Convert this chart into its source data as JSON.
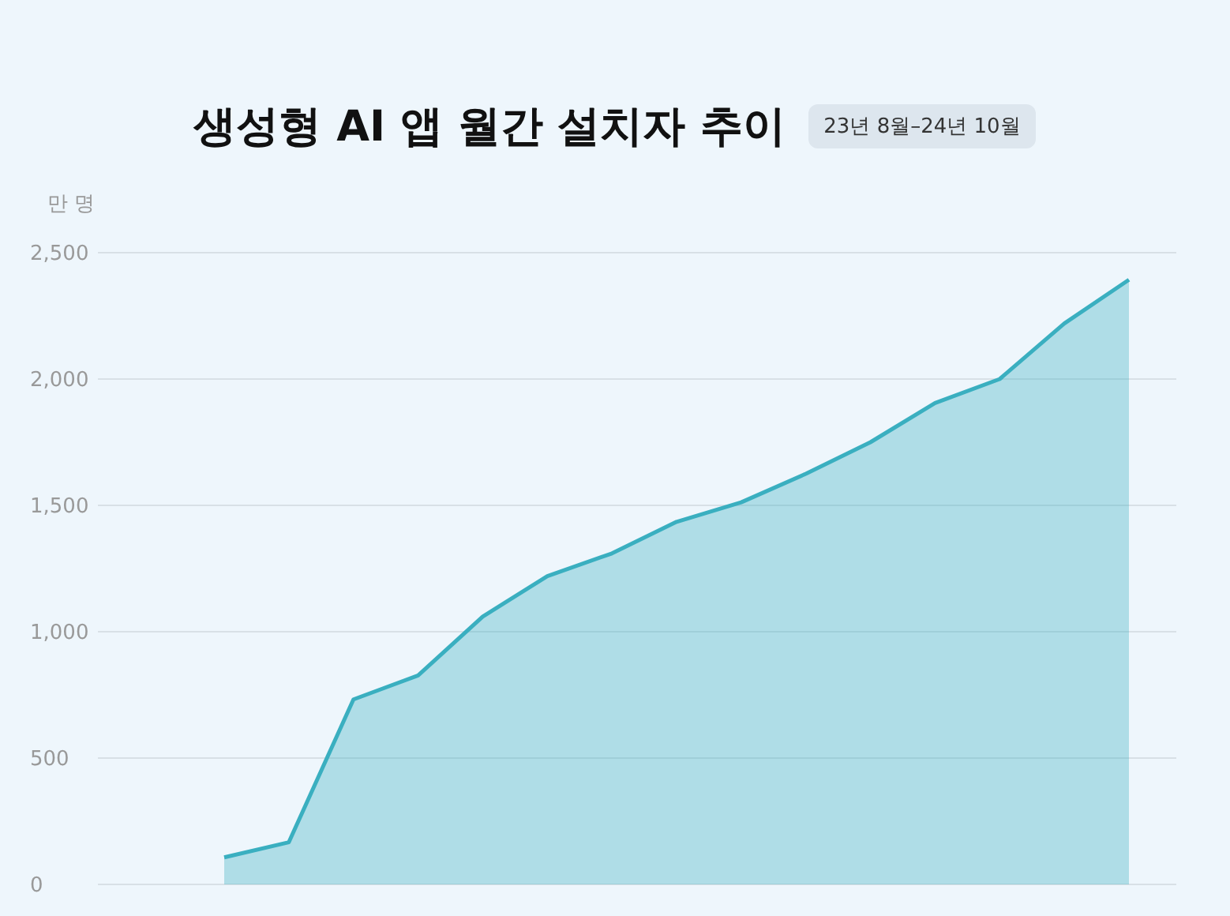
{
  "chart_data": {
    "type": "area",
    "title": "생성형 AI 앱 월간 설치자 추이",
    "subtitle": "23년 8월–24년 10월",
    "ylabel": "만 명",
    "categories": [
      null,
      null,
      null,
      null,
      null,
      null,
      null,
      null,
      null,
      null,
      null,
      null,
      null,
      null,
      null
    ],
    "series": [
      {
        "color": "#3aafc0",
        "values": [
          107,
          167,
          732,
          827,
          1060,
          1220,
          1310,
          1435,
          1512,
          1625,
          1750,
          1905,
          2000,
          2220,
          2393
        ]
      }
    ],
    "ylim": [
      0,
      2500
    ],
    "yticks": [
      {
        "value": 0,
        "label": "0"
      },
      {
        "value": 500,
        "label": "500"
      },
      {
        "value": 1000,
        "label": "1,000"
      },
      {
        "value": 1500,
        "label": "1,500"
      },
      {
        "value": 2000,
        "label": "2,000"
      },
      {
        "value": 2500,
        "label": "2,500"
      }
    ],
    "grid": "y",
    "tick_labels": "y"
  }
}
